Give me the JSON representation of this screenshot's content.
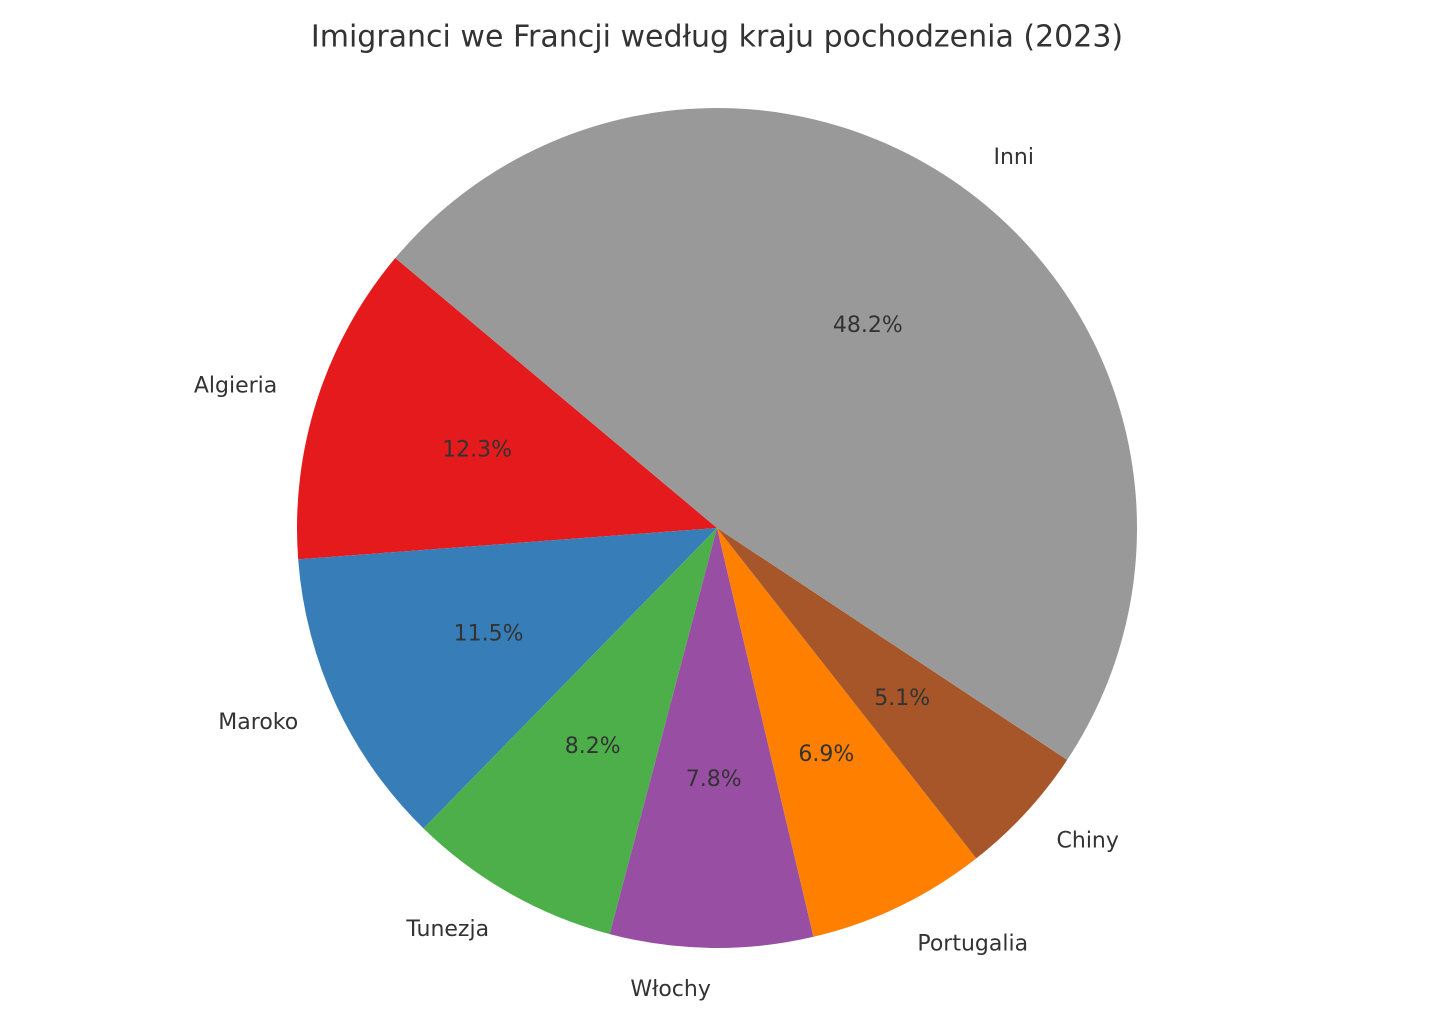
{
  "chart_data": {
    "type": "pie",
    "title": "Imigranci we Francji według kraju pochodzenia (2023)",
    "categories": [
      "Algieria",
      "Maroko",
      "Tunezja",
      "Włochy",
      "Portugalia",
      "Chiny",
      "Inni"
    ],
    "values": [
      12.3,
      11.5,
      8.2,
      7.8,
      6.9,
      5.1,
      48.2
    ],
    "value_labels": [
      "12.3%",
      "11.5%",
      "8.2%",
      "7.8%",
      "6.9%",
      "5.1%",
      "48.2%"
    ],
    "colors": [
      "#e41a1c",
      "#377eb8",
      "#4daf4a",
      "#984ea3",
      "#ff7f00",
      "#a65628",
      "#999999"
    ]
  }
}
